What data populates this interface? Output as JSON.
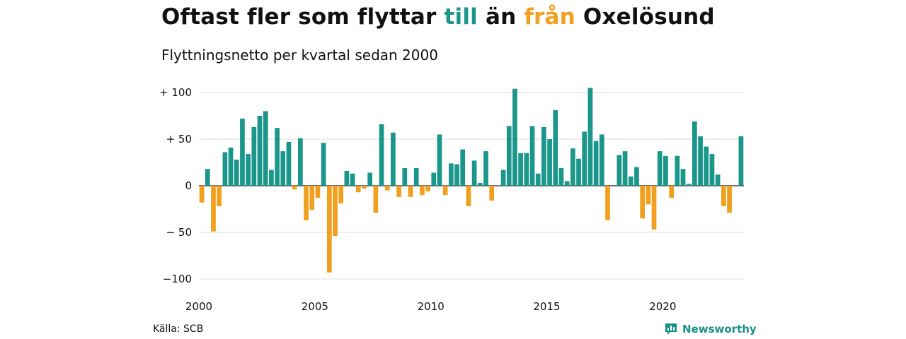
{
  "header": {
    "title_parts": [
      "Oftast fler som flyttar ",
      "till",
      " än ",
      "från",
      " Oxelösund"
    ],
    "subtitle": "Flyttningsnetto per kvartal sedan 2000"
  },
  "colors": {
    "positive": "#1a968a",
    "negative": "#f0a01e",
    "grid": "#dddddd",
    "axis": "#222222"
  },
  "footer": {
    "source": "Källa: SCB",
    "brand": "Newsworthy",
    "brand_icon": "newsworthy-logo-icon"
  },
  "chart_data": {
    "type": "bar",
    "title": "Oftast fler som flyttar till än från Oxelösund",
    "subtitle": "Flyttningsnetto per kvartal sedan 2000",
    "xlabel": "",
    "ylabel": "",
    "ylim": [
      -100,
      105
    ],
    "yticks": [
      100,
      50,
      0,
      -50,
      -100
    ],
    "ytick_labels": [
      "+ 100",
      "+  50",
      "0",
      "− 50",
      "−100"
    ],
    "xticks": [
      2000,
      2005,
      2010,
      2015,
      2020
    ],
    "xlim": [
      2000.0,
      2023.5
    ],
    "grid": true,
    "categories": [
      "2000 Q1",
      "2000 Q2",
      "2000 Q3",
      "2000 Q4",
      "2001 Q1",
      "2001 Q2",
      "2001 Q3",
      "2001 Q4",
      "2002 Q1",
      "2002 Q2",
      "2002 Q3",
      "2002 Q4",
      "2003 Q1",
      "2003 Q2",
      "2003 Q3",
      "2003 Q4",
      "2004 Q1",
      "2004 Q2",
      "2004 Q3",
      "2004 Q4",
      "2005 Q1",
      "2005 Q2",
      "2005 Q3",
      "2005 Q4",
      "2006 Q1",
      "2006 Q2",
      "2006 Q3",
      "2006 Q4",
      "2007 Q1",
      "2007 Q2",
      "2007 Q3",
      "2007 Q4",
      "2008 Q1",
      "2008 Q2",
      "2008 Q3",
      "2008 Q4",
      "2009 Q1",
      "2009 Q2",
      "2009 Q3",
      "2009 Q4",
      "2010 Q1",
      "2010 Q2",
      "2010 Q3",
      "2010 Q4",
      "2011 Q1",
      "2011 Q2",
      "2011 Q3",
      "2011 Q4",
      "2012 Q1",
      "2012 Q2",
      "2012 Q3",
      "2012 Q4",
      "2013 Q1",
      "2013 Q2",
      "2013 Q3",
      "2013 Q4",
      "2014 Q1",
      "2014 Q2",
      "2014 Q3",
      "2014 Q4",
      "2015 Q1",
      "2015 Q2",
      "2015 Q3",
      "2015 Q4",
      "2016 Q1",
      "2016 Q2",
      "2016 Q3",
      "2016 Q4",
      "2017 Q1",
      "2017 Q2",
      "2017 Q3",
      "2017 Q4",
      "2018 Q1",
      "2018 Q2",
      "2018 Q3",
      "2018 Q4",
      "2019 Q1",
      "2019 Q2",
      "2019 Q3",
      "2019 Q4",
      "2020 Q1",
      "2020 Q2",
      "2020 Q3",
      "2020 Q4",
      "2021 Q1",
      "2021 Q2",
      "2021 Q3",
      "2021 Q4",
      "2022 Q1",
      "2022 Q2",
      "2022 Q3",
      "2022 Q4",
      "2023 Q1",
      "2023 Q2"
    ],
    "values": [
      -18,
      18,
      -49,
      -22,
      36,
      41,
      28,
      72,
      34,
      63,
      75,
      80,
      17,
      62,
      37,
      47,
      -4,
      51,
      -37,
      -26,
      -13,
      46,
      -93,
      -54,
      -19,
      16,
      13,
      -7,
      -3,
      14,
      -29,
      66,
      -5,
      57,
      -12,
      19,
      -12,
      19,
      -10,
      -6,
      14,
      55,
      -10,
      24,
      23,
      39,
      -22,
      27,
      3,
      37,
      -16,
      0,
      17,
      64,
      104,
      35,
      35,
      64,
      13,
      63,
      50,
      81,
      19,
      5,
      40,
      29,
      58,
      105,
      48,
      55,
      -37,
      0,
      33,
      37,
      10,
      20,
      -35,
      -20,
      -47,
      37,
      32,
      -13,
      32,
      18,
      2,
      69,
      53,
      42,
      34,
      12,
      -22,
      -29,
      0,
      53
    ]
  }
}
